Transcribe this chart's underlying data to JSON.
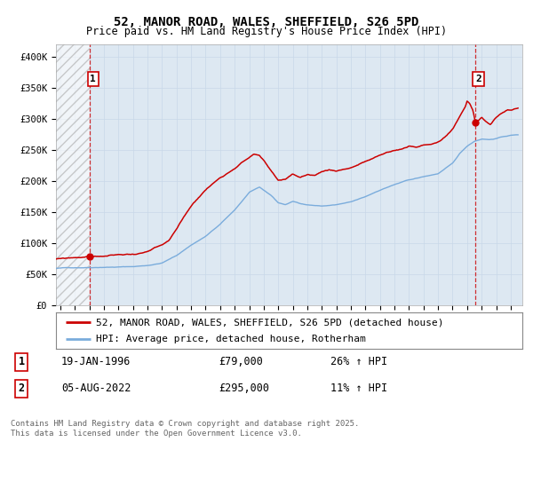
{
  "title": "52, MANOR ROAD, WALES, SHEFFIELD, S26 5PD",
  "subtitle": "Price paid vs. HM Land Registry's House Price Index (HPI)",
  "ylim": [
    0,
    420000
  ],
  "xlim_start": 1993.7,
  "xlim_end": 2025.8,
  "yticks": [
    0,
    50000,
    100000,
    150000,
    200000,
    250000,
    300000,
    350000,
    400000
  ],
  "ytick_labels": [
    "£0",
    "£50K",
    "£100K",
    "£150K",
    "£200K",
    "£250K",
    "£300K",
    "£350K",
    "£400K"
  ],
  "transaction1_date": 1996.05,
  "transaction1_price": 79000,
  "transaction1_label": "1",
  "transaction2_date": 2022.58,
  "transaction2_price": 295000,
  "transaction2_label": "2",
  "red_line_color": "#cc0000",
  "blue_line_color": "#7aacdc",
  "grid_color": "#c8d8e8",
  "background_color": "#ffffff",
  "plot_bg_color": "#dde8f2",
  "legend_label1": "52, MANOR ROAD, WALES, SHEFFIELD, S26 5PD (detached house)",
  "legend_label2": "HPI: Average price, detached house, Rotherham",
  "table_row1": [
    "1",
    "19-JAN-1996",
    "£79,000",
    "26% ↑ HPI"
  ],
  "table_row2": [
    "2",
    "05-AUG-2022",
    "£295,000",
    "11% ↑ HPI"
  ],
  "footer": "Contains HM Land Registry data © Crown copyright and database right 2025.\nThis data is licensed under the Open Government Licence v3.0.",
  "title_fontsize": 10,
  "subtitle_fontsize": 8.5,
  "tick_fontsize": 7.5,
  "legend_fontsize": 8,
  "table_fontsize": 8.5,
  "footer_fontsize": 6.5,
  "mono_font": "DejaVu Sans Mono"
}
